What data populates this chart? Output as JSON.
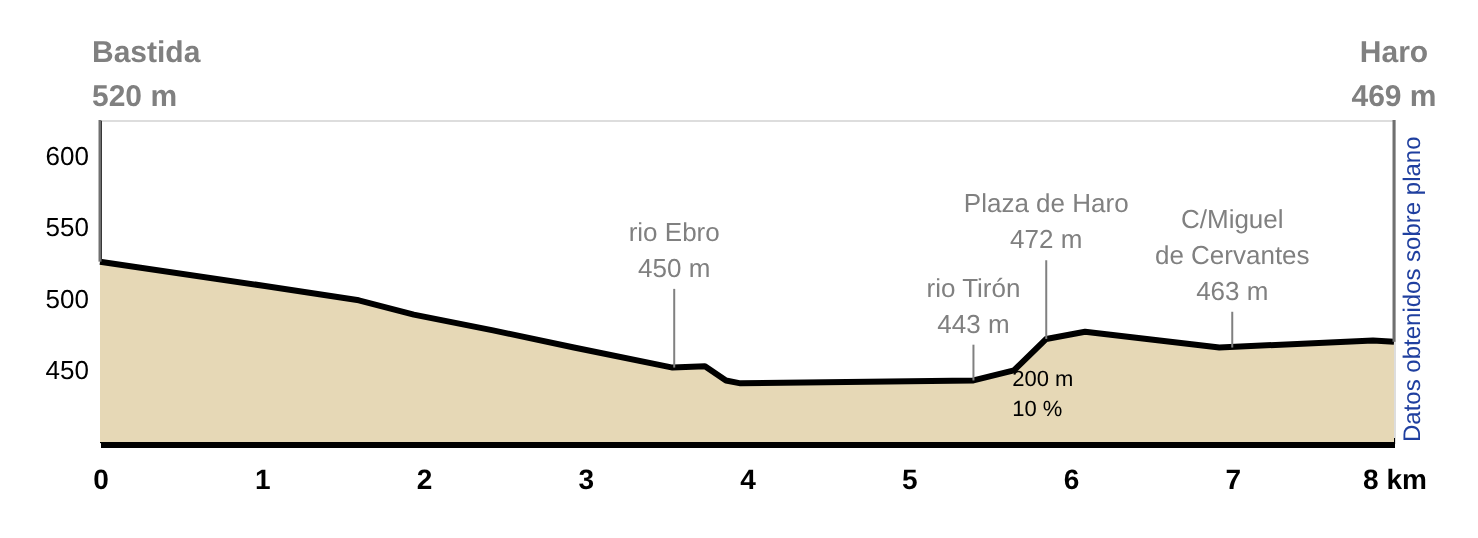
{
  "chart_data": {
    "type": "area",
    "x": [
      0,
      1.02,
      1.6,
      1.94,
      2.43,
      2.93,
      3.54,
      3.74,
      3.87,
      3.96,
      5.4,
      5.65,
      5.85,
      6.09,
      6.92,
      7.87,
      8
    ],
    "series": [
      {
        "color": "#e6d8b6",
        "values": [
          526,
          509,
          499,
          489,
          478,
          466,
          452,
          453,
          443,
          441,
          443,
          450,
          472,
          477,
          466,
          471,
          470
        ]
      }
    ],
    "xlim": [
      0,
      8
    ],
    "xticks": [
      0,
      1,
      2,
      3,
      4,
      5,
      6,
      7,
      {
        "value": 8,
        "label": "8 km"
      }
    ],
    "ylim": [
      400,
      625
    ],
    "yticks": [
      450,
      500,
      550,
      600
    ],
    "grid": false,
    "annotations": [
      {
        "text": "Bastida\n520 m",
        "x": 0,
        "y": 526
      },
      {
        "text": "rio Ebro\n450 m",
        "x": 3.55,
        "y": 452
      },
      {
        "text": "rio Tirón\n443 m",
        "x": 5.4,
        "y": 443
      },
      {
        "text": "Plaza de Haro\n472 m",
        "x": 5.85,
        "y": 472
      },
      {
        "text": "C/Miguel\nde Cervantes\n463 m",
        "x": 7.0,
        "y": 466
      },
      "Haro\n469 m",
      "Datos obtenidos sobre plano",
      "200 m",
      "10 %"
    ]
  }
}
